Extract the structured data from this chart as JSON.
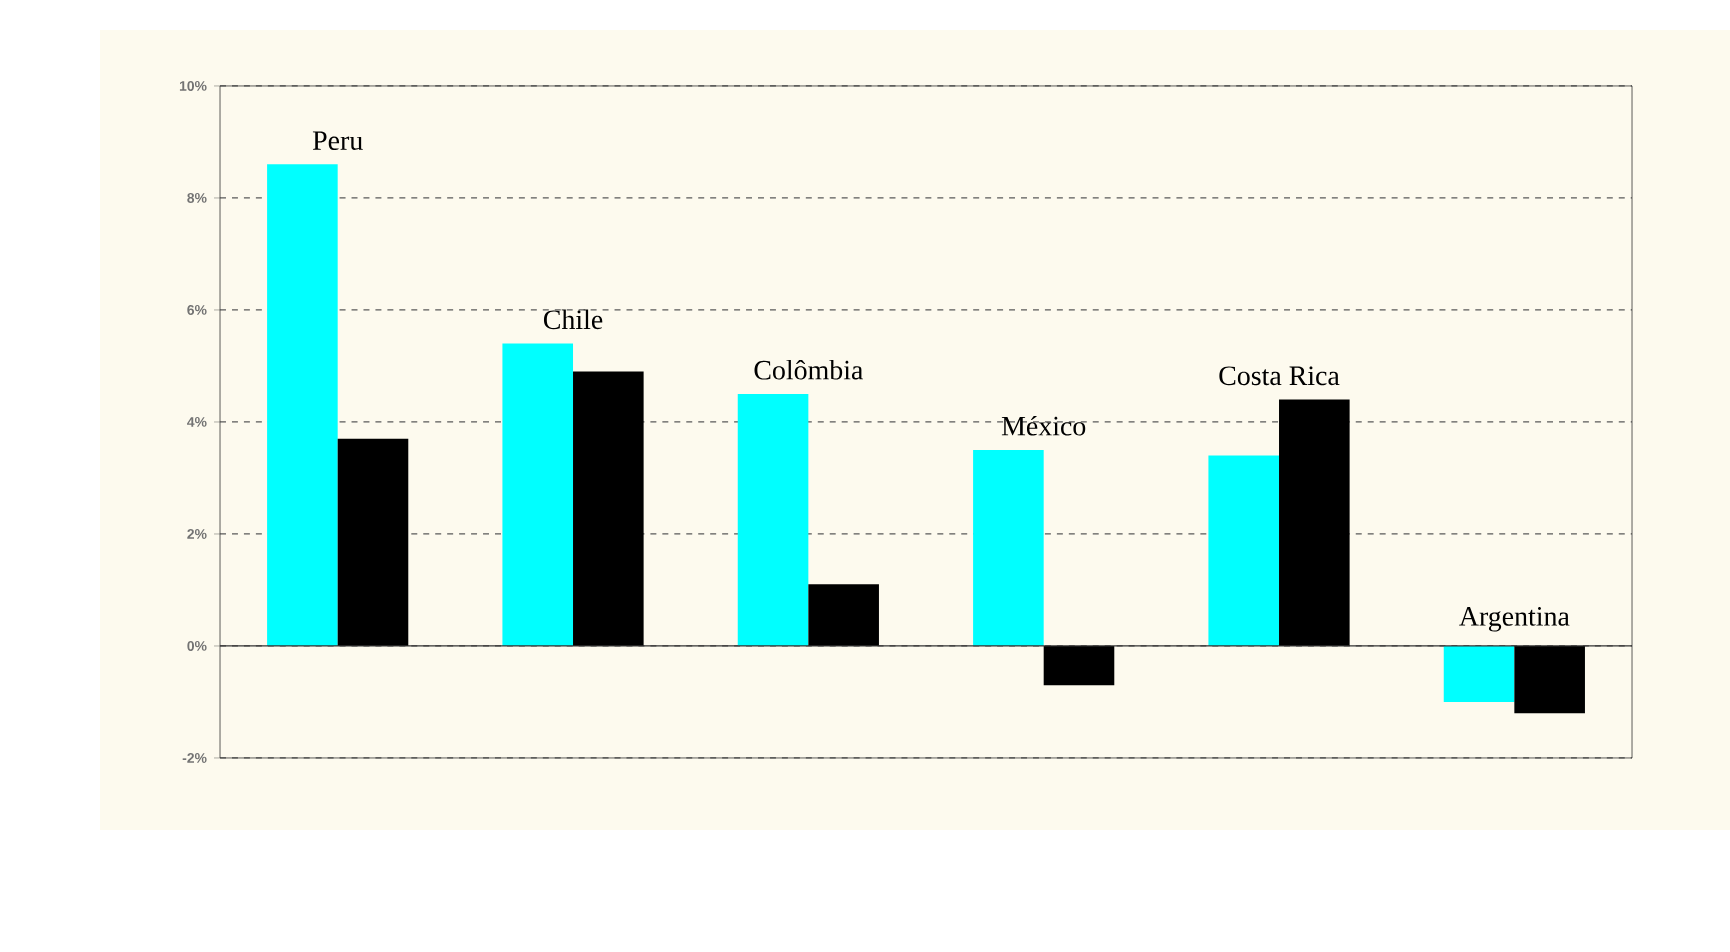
{
  "chart_data": {
    "type": "bar",
    "categories": [
      "Peru",
      "Chile",
      "Colômbia",
      "México",
      "Costa Rica",
      "Argentina"
    ],
    "series": [
      {
        "color": "#00ffff",
        "values": [
          8.6,
          5.4,
          4.5,
          3.5,
          3.4,
          -1.0
        ]
      },
      {
        "color": "#000000",
        "values": [
          3.7,
          4.9,
          1.1,
          -0.7,
          4.4,
          -1.2
        ]
      }
    ],
    "ylim": [
      -2,
      10
    ],
    "yticks": [
      {
        "value": -2,
        "label": "-2%"
      },
      {
        "value": 0,
        "label": "0%"
      },
      {
        "value": 2,
        "label": "2%"
      },
      {
        "value": 4,
        "label": "4%"
      },
      {
        "value": 6,
        "label": "6%"
      },
      {
        "value": 8,
        "label": "8%"
      },
      {
        "value": 10,
        "label": "10%"
      }
    ],
    "grid": "y"
  }
}
